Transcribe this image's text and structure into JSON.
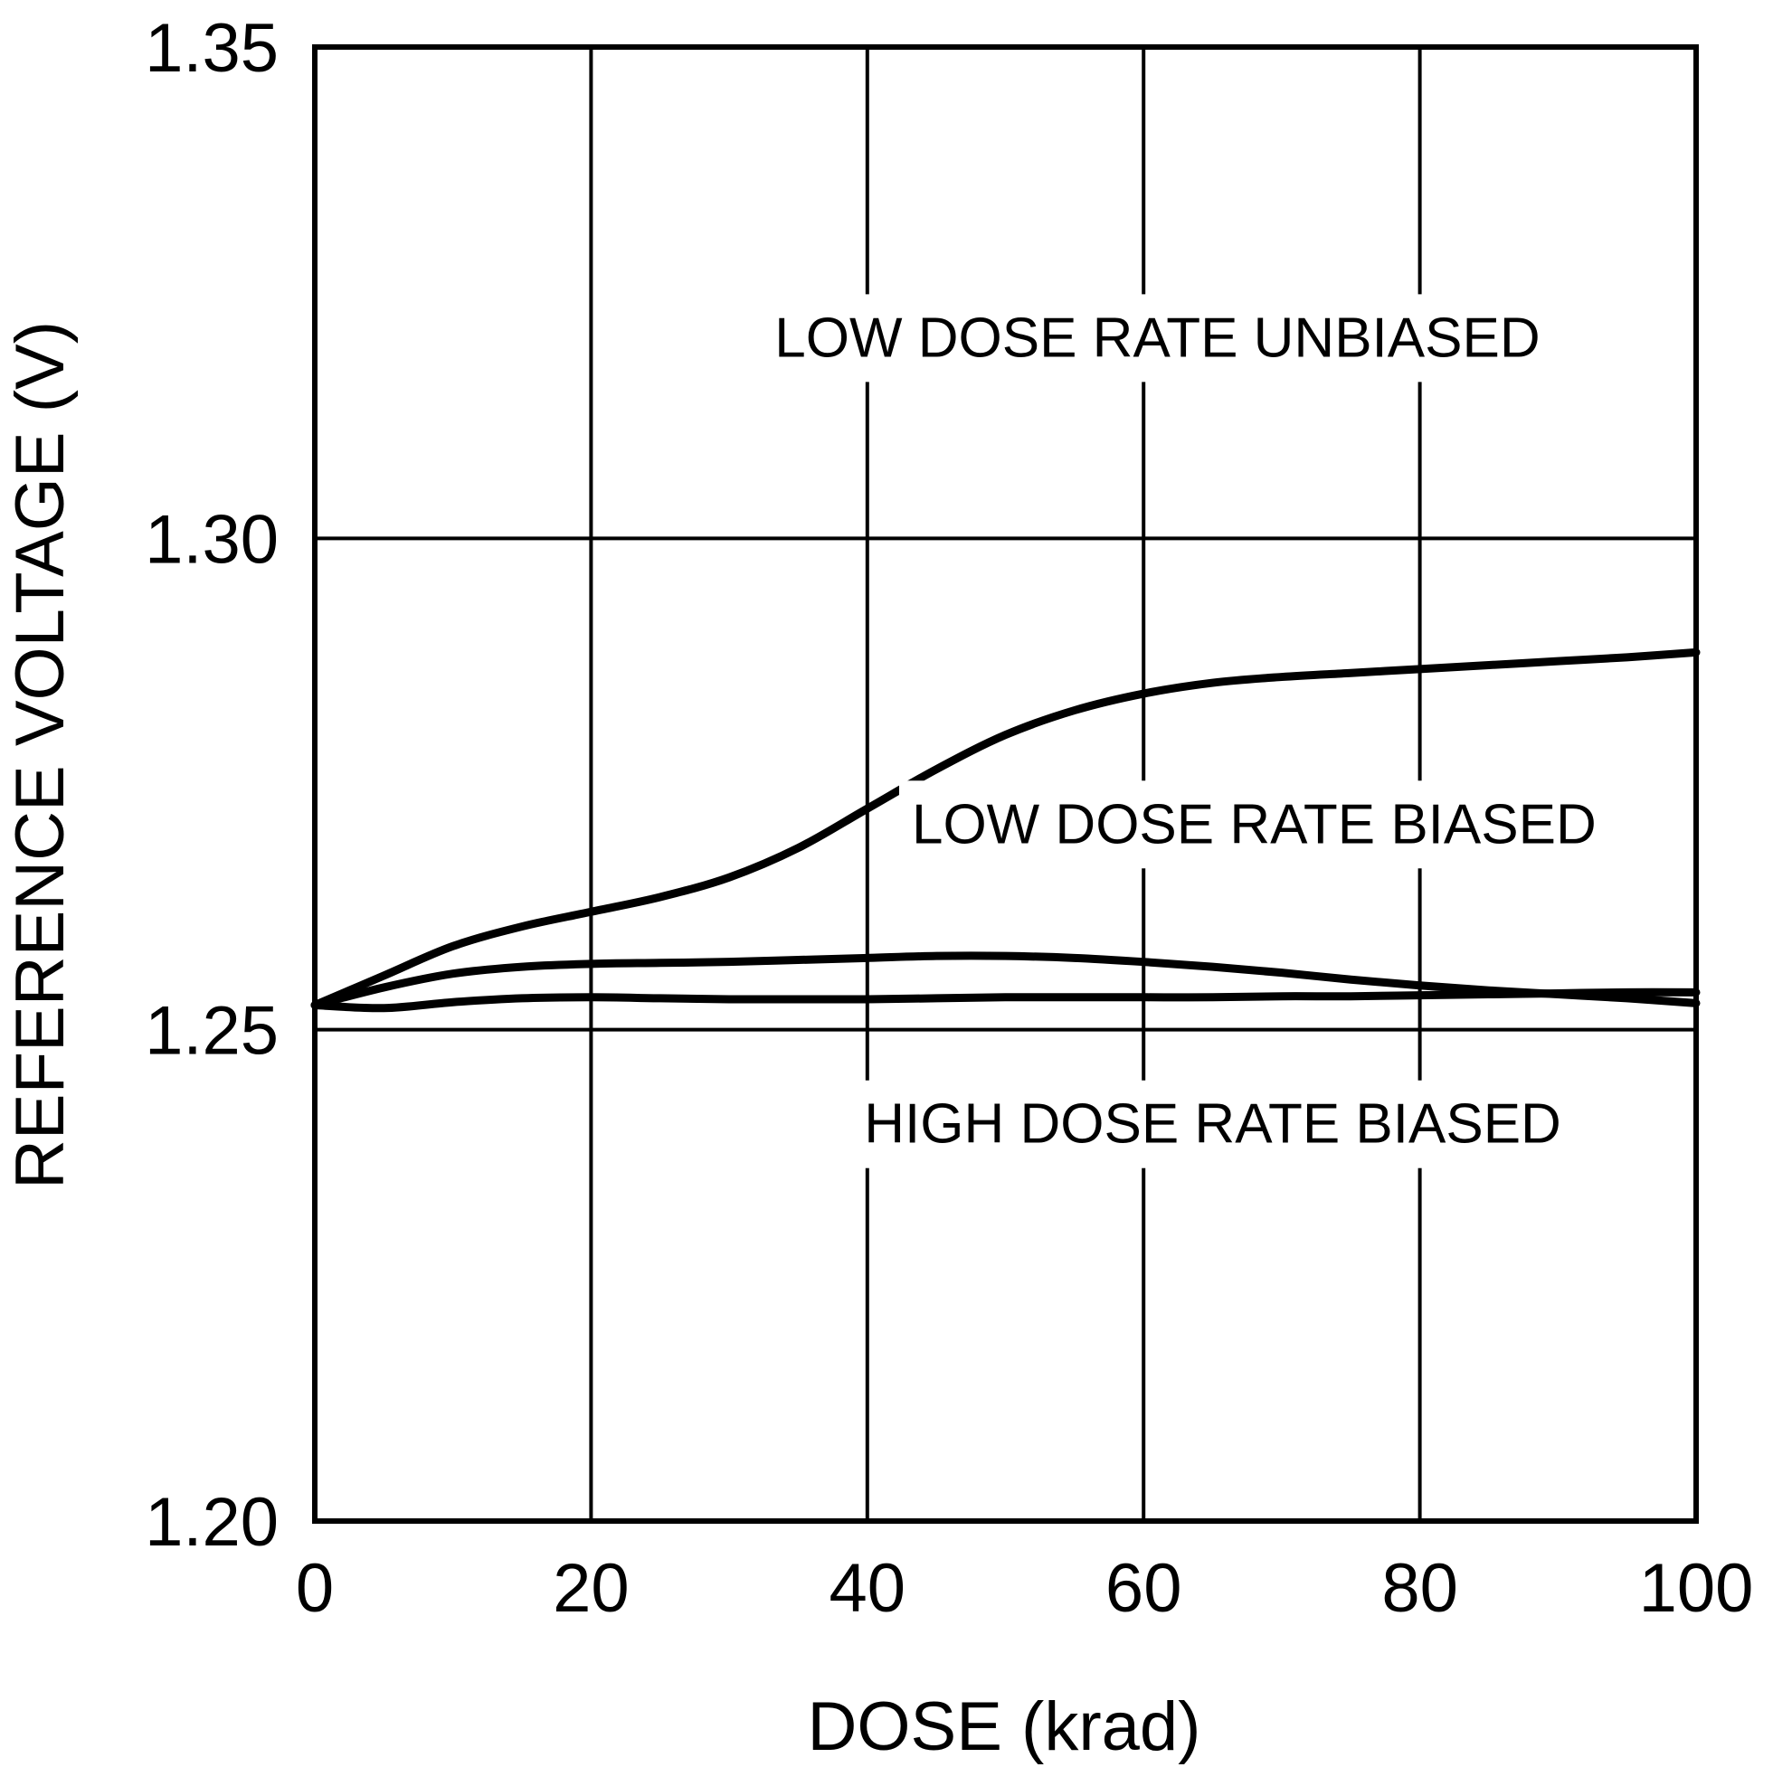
{
  "chart_data": {
    "type": "line",
    "title": "",
    "xlabel": "DOSE (krad)",
    "ylabel": "REFERENCE VOLTAGE (V)",
    "xlim": [
      0,
      100
    ],
    "ylim": [
      1.2,
      1.35
    ],
    "xticks": [
      0,
      20,
      40,
      60,
      80,
      100
    ],
    "yticks": [
      1.2,
      1.25,
      1.3,
      1.35
    ],
    "xtick_labels": [
      "0",
      "20",
      "40",
      "60",
      "80",
      "100"
    ],
    "ytick_labels": [
      "1.20",
      "1.25",
      "1.30",
      "1.35"
    ],
    "grid": true,
    "legend": "none",
    "series": [
      {
        "name": "LOW DOSE RATE UNBIASED",
        "x": [
          0,
          5,
          10,
          15,
          20,
          25,
          30,
          35,
          40,
          45,
          50,
          55,
          60,
          65,
          70,
          75,
          80,
          85,
          90,
          95,
          100
        ],
        "y": [
          1.2525,
          1.2555,
          1.2585,
          1.2605,
          1.262,
          1.2635,
          1.2655,
          1.2685,
          1.2725,
          1.2765,
          1.28,
          1.2825,
          1.2842,
          1.2853,
          1.2859,
          1.2863,
          1.2867,
          1.2871,
          1.2875,
          1.2879,
          1.2884
        ]
      },
      {
        "name": "LOW DOSE RATE BIASED",
        "x": [
          0,
          5,
          10,
          15,
          20,
          25,
          30,
          35,
          40,
          45,
          50,
          55,
          60,
          65,
          70,
          75,
          80,
          85,
          90,
          95,
          100
        ],
        "y": [
          1.2525,
          1.2543,
          1.2557,
          1.2564,
          1.2567,
          1.2568,
          1.2569,
          1.2571,
          1.2573,
          1.2575,
          1.2575,
          1.2573,
          1.2569,
          1.2564,
          1.2558,
          1.2551,
          1.2545,
          1.254,
          1.2536,
          1.2532,
          1.2527
        ]
      },
      {
        "name": "HIGH DOSE RATE BIASED",
        "x": [
          0,
          5,
          10,
          15,
          20,
          25,
          30,
          35,
          40,
          45,
          50,
          55,
          60,
          65,
          70,
          75,
          80,
          85,
          90,
          95,
          100
        ],
        "y": [
          1.2525,
          1.2522,
          1.2528,
          1.2532,
          1.2533,
          1.2532,
          1.2531,
          1.2531,
          1.2531,
          1.2532,
          1.2533,
          1.2533,
          1.2533,
          1.2533,
          1.2534,
          1.2534,
          1.2535,
          1.2536,
          1.2537,
          1.2538,
          1.2538
        ]
      }
    ],
    "annotations": [
      {
        "text": "LOW DOSE RATE UNBIASED",
        "x": 61,
        "y": 1.32
      },
      {
        "text": "LOW DOSE RATE BIASED",
        "x": 68,
        "y": 1.2705
      },
      {
        "text": "HIGH DOSE RATE BIASED",
        "x": 65,
        "y": 1.24
      }
    ]
  }
}
